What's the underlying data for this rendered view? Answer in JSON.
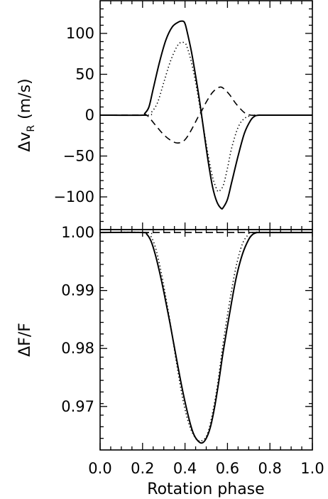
{
  "chart_data": [
    {
      "type": "line",
      "xlabel": "Rotation phase",
      "ylabel": "ΔvR (m/s)",
      "ylabel_main": "Δv",
      "ylabel_sub": "R",
      "ylabel_unit": "(m/s)",
      "xlim": [
        0.0,
        1.0
      ],
      "ylim": [
        -140,
        140
      ],
      "x_tick_labels": [],
      "y_ticks": [
        {
          "value": 100,
          "label": "100"
        },
        {
          "value": 50,
          "label": "50"
        },
        {
          "value": 0,
          "label": "0"
        },
        {
          "value": -50,
          "label": "−50"
        },
        {
          "value": -100,
          "label": "−100"
        }
      ],
      "series": [
        {
          "style": "solid",
          "x": [
            0.0,
            0.2,
            0.21,
            0.23,
            0.25,
            0.28,
            0.31,
            0.34,
            0.37,
            0.39,
            0.4,
            0.41,
            0.43,
            0.45,
            0.47,
            0.49,
            0.51,
            0.53,
            0.55,
            0.57,
            0.58,
            0.6,
            0.62,
            0.65,
            0.68,
            0.71,
            0.73,
            0.75,
            0.78,
            1.0
          ],
          "y": [
            0,
            0,
            2,
            10,
            32,
            65,
            92,
            108,
            114,
            115,
            112,
            102,
            78,
            48,
            15,
            -22,
            -58,
            -88,
            -106,
            -114,
            -113,
            -103,
            -82,
            -50,
            -22,
            -6,
            -1,
            0,
            0,
            0
          ]
        },
        {
          "style": "dotted",
          "x": [
            0.0,
            0.22,
            0.24,
            0.27,
            0.3,
            0.33,
            0.36,
            0.38,
            0.4,
            0.41,
            0.43,
            0.45,
            0.47,
            0.49,
            0.51,
            0.53,
            0.55,
            0.56,
            0.58,
            0.6,
            0.62,
            0.65,
            0.68,
            0.72,
            0.75,
            1.0
          ],
          "y": [
            0,
            0,
            3,
            15,
            40,
            65,
            83,
            89,
            88,
            83,
            65,
            40,
            10,
            -20,
            -50,
            -76,
            -91,
            -93,
            -86,
            -65,
            -40,
            -15,
            -4,
            0,
            0,
            0
          ]
        },
        {
          "style": "dashed",
          "x": [
            0.0,
            0.2,
            0.23,
            0.26,
            0.3,
            0.34,
            0.37,
            0.4,
            0.43,
            0.46,
            0.48,
            0.5,
            0.53,
            0.56,
            0.58,
            0.61,
            0.64,
            0.68,
            0.71,
            0.74,
            0.77,
            1.0
          ],
          "y": [
            0,
            0,
            -3,
            -12,
            -24,
            -32,
            -34,
            -30,
            -18,
            -3,
            6,
            16,
            28,
            34,
            33,
            25,
            14,
            3,
            0,
            0,
            0,
            0
          ]
        }
      ]
    },
    {
      "type": "line",
      "xlabel": "Rotation phase",
      "ylabel": "ΔF/F",
      "xlim": [
        0.0,
        1.0
      ],
      "ylim": [
        0.9625,
        1.0005
      ],
      "x_tick_labels": [
        "0.0",
        "0.2",
        "0.4",
        "0.6",
        "0.8",
        "1.0"
      ],
      "y_ticks": [
        {
          "value": 1.0,
          "label": "1.00"
        },
        {
          "value": 0.99,
          "label": "0.99"
        },
        {
          "value": 0.98,
          "label": "0.98"
        },
        {
          "value": 0.97,
          "label": "0.97"
        }
      ],
      "series": [
        {
          "style": "solid",
          "x": [
            0.0,
            0.2,
            0.22,
            0.24,
            0.26,
            0.28,
            0.3,
            0.33,
            0.36,
            0.39,
            0.42,
            0.44,
            0.46,
            0.48,
            0.5,
            0.52,
            0.54,
            0.56,
            0.58,
            0.61,
            0.64,
            0.67,
            0.7,
            0.72,
            0.74,
            0.76,
            1.0
          ],
          "y": [
            1.0,
            1.0,
            0.9997,
            0.9985,
            0.9962,
            0.9932,
            0.9898,
            0.9842,
            0.9782,
            0.9725,
            0.9677,
            0.9653,
            0.9641,
            0.9637,
            0.9645,
            0.9665,
            0.97,
            0.9745,
            0.9795,
            0.986,
            0.992,
            0.9962,
            0.9988,
            0.9997,
            1.0,
            1.0,
            1.0
          ]
        },
        {
          "style": "dotted",
          "x": [
            0.0,
            0.22,
            0.24,
            0.26,
            0.28,
            0.3,
            0.33,
            0.36,
            0.39,
            0.42,
            0.45,
            0.47,
            0.48,
            0.5,
            0.52,
            0.55,
            0.58,
            0.61,
            0.64,
            0.67,
            0.7,
            0.72,
            1.0
          ],
          "y": [
            1.0,
            1.0,
            0.9993,
            0.9975,
            0.9945,
            0.9908,
            0.9845,
            0.9775,
            0.9712,
            0.9668,
            0.9645,
            0.964,
            0.9641,
            0.9648,
            0.9672,
            0.973,
            0.981,
            0.988,
            0.994,
            0.998,
            0.9997,
            1.0,
            1.0
          ]
        },
        {
          "style": "dashed",
          "x": [
            0.0,
            1.0
          ],
          "y": [
            1.0,
            1.0
          ]
        }
      ]
    }
  ]
}
